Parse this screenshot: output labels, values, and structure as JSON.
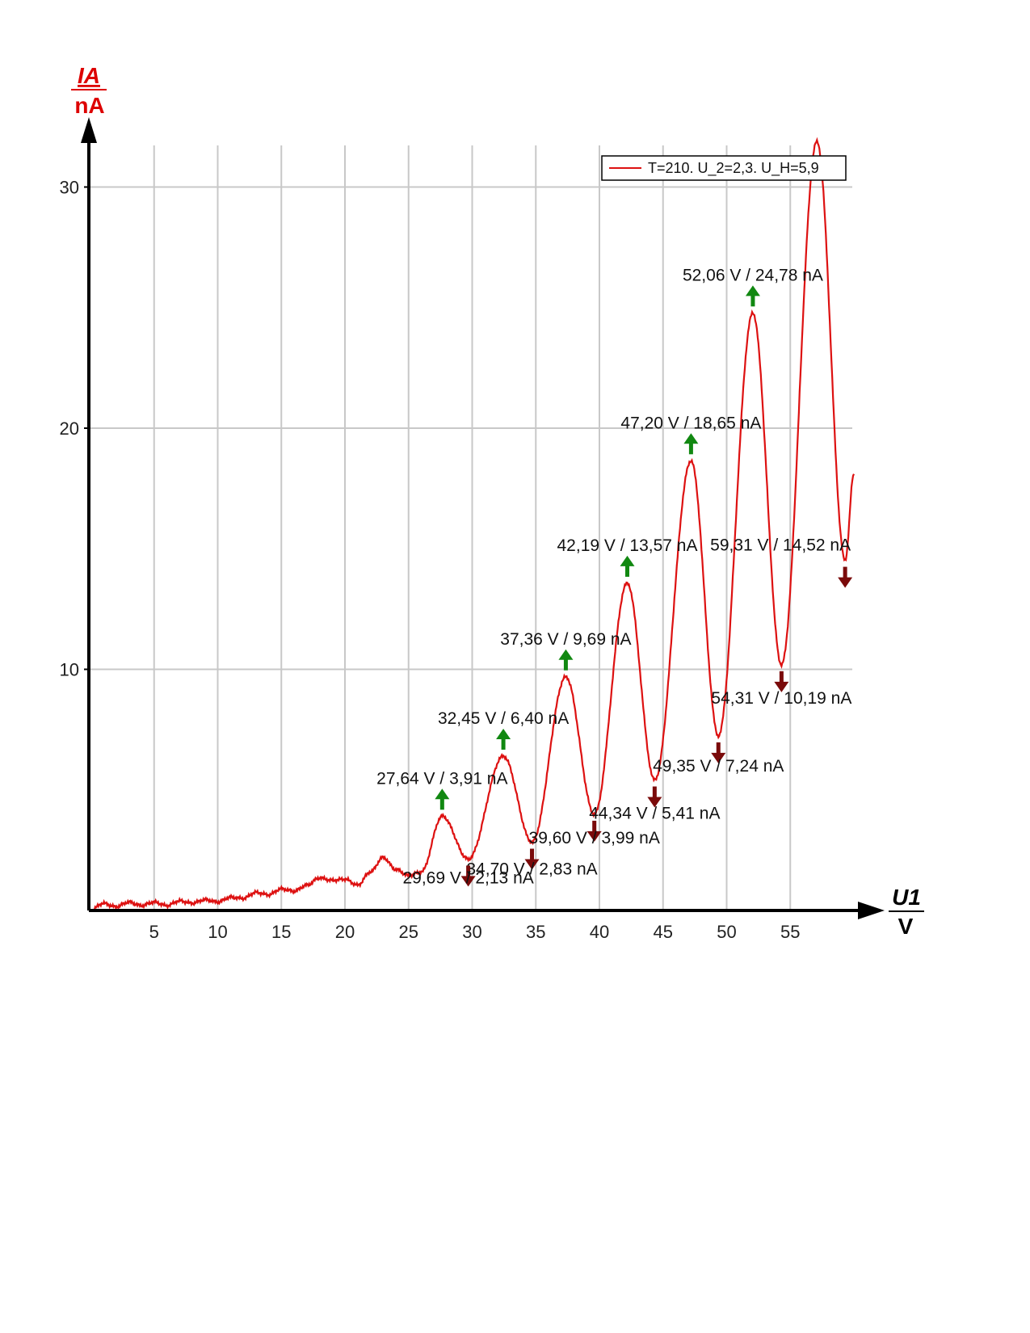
{
  "chart_data": {
    "type": "line",
    "title": "",
    "ylabel": "IA",
    "yunit": "nA",
    "xlabel": "U1",
    "xunit": "V",
    "xlim": [
      0,
      60
    ],
    "ylim": [
      0,
      32
    ],
    "xticks": [
      5,
      10,
      15,
      20,
      25,
      30,
      35,
      40,
      45,
      50,
      55
    ],
    "yticks": [
      10,
      20,
      30
    ],
    "grid": true,
    "legend_position": "top-right",
    "colors": {
      "series": "#dd1111",
      "axis_label": "#dd0000",
      "max_marker": "#118811",
      "min_marker": "#7a0a0a",
      "grid": "#c8c8c8"
    },
    "series": [
      {
        "name": "T=210. U_2=2,3. U_H=5,9",
        "control_points": [
          [
            0,
            0
          ],
          [
            1,
            0.3
          ],
          [
            2,
            0.15
          ],
          [
            3,
            0.35
          ],
          [
            4,
            0.2
          ],
          [
            5,
            0.35
          ],
          [
            6,
            0.2
          ],
          [
            7,
            0.4
          ],
          [
            8,
            0.3
          ],
          [
            9,
            0.45
          ],
          [
            10,
            0.35
          ],
          [
            11,
            0.55
          ],
          [
            12,
            0.5
          ],
          [
            13,
            0.75
          ],
          [
            14,
            0.65
          ],
          [
            15,
            0.9
          ],
          [
            16,
            0.8
          ],
          [
            17,
            1.05
          ],
          [
            18,
            1.35
          ],
          [
            19,
            1.25
          ],
          [
            20,
            1.3
          ],
          [
            21,
            1.05
          ],
          [
            22,
            1.6
          ],
          [
            23,
            2.2
          ],
          [
            24,
            1.7
          ],
          [
            25,
            1.45
          ],
          [
            26,
            1.6
          ],
          [
            27.64,
            3.91
          ],
          [
            29.69,
            2.13
          ],
          [
            32.45,
            6.4
          ],
          [
            34.7,
            2.83
          ],
          [
            37.36,
            9.69
          ],
          [
            39.6,
            3.99
          ],
          [
            42.19,
            13.57
          ],
          [
            44.34,
            5.41
          ],
          [
            47.2,
            18.65
          ],
          [
            49.35,
            7.24
          ],
          [
            52.06,
            24.78
          ],
          [
            54.31,
            10.19
          ],
          [
            57.1,
            31.9
          ],
          [
            59.31,
            14.52
          ],
          [
            60,
            18.1
          ]
        ]
      }
    ],
    "annotations": [
      {
        "kind": "max",
        "x": 27.64,
        "y": 3.91,
        "label": "27,64 V / 3,91 nA"
      },
      {
        "kind": "min",
        "x": 29.69,
        "y": 2.13,
        "label": "29,69 V / 2,13 nA"
      },
      {
        "kind": "max",
        "x": 32.45,
        "y": 6.4,
        "label": "32,45 V / 6,40 nA"
      },
      {
        "kind": "min",
        "x": 34.7,
        "y": 2.83,
        "label": "34,70 V / 2,83 nA"
      },
      {
        "kind": "max",
        "x": 37.36,
        "y": 9.69,
        "label": "37,36 V / 9,69 nA"
      },
      {
        "kind": "min",
        "x": 39.6,
        "y": 3.99,
        "label": "39,60 V / 3,99 nA"
      },
      {
        "kind": "max",
        "x": 42.19,
        "y": 13.57,
        "label": "42,19 V / 13,57 nA"
      },
      {
        "kind": "min",
        "x": 44.34,
        "y": 5.41,
        "label": "44,34 V / 5,41 nA"
      },
      {
        "kind": "max",
        "x": 47.2,
        "y": 18.65,
        "label": "47,20 V / 18,65 nA"
      },
      {
        "kind": "min",
        "x": 49.35,
        "y": 7.24,
        "label": "49,35 V / 7,24 nA"
      },
      {
        "kind": "max",
        "x": 52.06,
        "y": 24.78,
        "label": "52,06 V / 24,78 nA"
      },
      {
        "kind": "min",
        "x": 54.31,
        "y": 10.19,
        "label": "54,31 V / 10,19 nA"
      },
      {
        "kind": "min",
        "x": 59.31,
        "y": 14.52,
        "label": "59,31 V / 14,52 nA"
      }
    ]
  }
}
